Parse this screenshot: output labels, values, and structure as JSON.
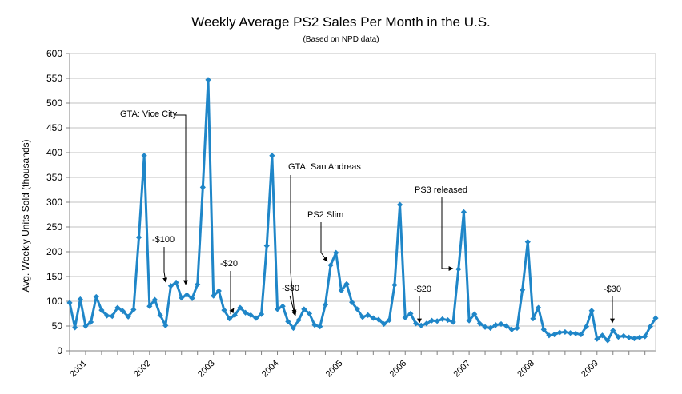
{
  "chart_data": {
    "type": "line",
    "title": "Weekly Average PS2 Sales Per Month in the U.S.",
    "subtitle": "(Based on NPD data)",
    "ylabel": "Avg. Weekly Units Sold (thousands)",
    "xlabel": "",
    "ylim": [
      0,
      600
    ],
    "yticks": [
      0,
      50,
      100,
      150,
      200,
      250,
      300,
      350,
      400,
      450,
      500,
      550,
      600
    ],
    "year_labels": [
      "2001",
      "2002",
      "2003",
      "2004",
      "2005",
      "2006",
      "2007",
      "2008",
      "2009"
    ],
    "grid": true,
    "legend": "none",
    "colors": {
      "line": "#1f86c8",
      "grid": "#c0c0c0",
      "axis": "#808080"
    },
    "series": [
      {
        "values": [
          97,
          47,
          104,
          50,
          58,
          109,
          82,
          71,
          70,
          87,
          80,
          69,
          83,
          229,
          394,
          90,
          103,
          72,
          51,
          131,
          138,
          107,
          113,
          106,
          134,
          330,
          547,
          111,
          121,
          82,
          65,
          72,
          87,
          77,
          72,
          66,
          74,
          212,
          394,
          84,
          90,
          59,
          46,
          62,
          84,
          75,
          52,
          49,
          93,
          173,
          198,
          122,
          135,
          98,
          84,
          68,
          72,
          66,
          63,
          54,
          62,
          133,
          295,
          67,
          75,
          55,
          51,
          55,
          61,
          60,
          64,
          62,
          58,
          165,
          280,
          61,
          74,
          55,
          48,
          46,
          52,
          54,
          50,
          43,
          46,
          123,
          220,
          65,
          87,
          43,
          31,
          33,
          37,
          38,
          36,
          35,
          33,
          49,
          81,
          24,
          31,
          21,
          41,
          28,
          30,
          27,
          25,
          27,
          29,
          49,
          66
        ]
      }
    ],
    "annotations": [
      {
        "text": "GTA: Vice City",
        "index": 22
      },
      {
        "text": "-$100",
        "index": 18
      },
      {
        "text": "-$20",
        "index": 31
      },
      {
        "text": "GTA: San Andreas",
        "index": 46
      },
      {
        "text": "-$30",
        "index": 43
      },
      {
        "text": "PS2 Slim",
        "index": 49
      },
      {
        "text": "-$20",
        "index": 65
      },
      {
        "text": "PS3 released",
        "index": 72
      },
      {
        "text": "-$30",
        "index": 99
      }
    ]
  }
}
